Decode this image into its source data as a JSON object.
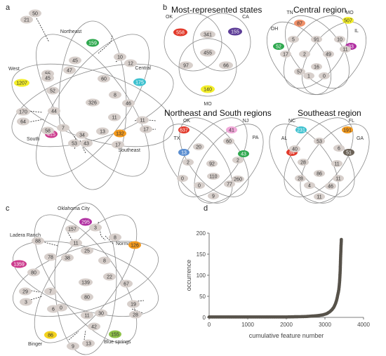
{
  "panels": [
    {
      "id": "a",
      "letter": "a",
      "venn_sets": 5,
      "set_labels": [
        "Northeast",
        "Central",
        "Southeast",
        "South",
        "West"
      ],
      "unique": [
        {
          "set": "Northeast",
          "value": "159",
          "color": "#2fa84f"
        },
        {
          "set": "Central",
          "value": "175",
          "color": "#3ec1cf"
        },
        {
          "set": "Southeast",
          "value": "132",
          "color": "#f39a1e"
        },
        {
          "set": "South",
          "value": "415",
          "color": "#cc3b8d"
        },
        {
          "set": "West",
          "value": "1207",
          "color": "#f3ee2a"
        }
      ],
      "intersections": [
        "50",
        "21",
        "45",
        "47",
        "55",
        "10",
        "12",
        "60",
        "45",
        "52",
        "8",
        "46",
        "326",
        "170",
        "44",
        "11",
        "11",
        "64",
        "7",
        "17",
        "58",
        "34",
        "13",
        "17",
        "53",
        "43"
      ]
    },
    {
      "id": "b1",
      "letter": "b",
      "title": "Most-represented states",
      "venn_sets": 3,
      "set_labels": [
        "OK",
        "CA",
        "MO"
      ],
      "unique": [
        {
          "set": "OK",
          "value": "558",
          "color": "#e23a2b"
        },
        {
          "set": "CA",
          "value": "155",
          "color": "#5d3d97"
        },
        {
          "set": "MO",
          "value": "140",
          "color": "#f3ee2a"
        }
      ],
      "intersections": [
        "341",
        "455",
        "97",
        "66"
      ]
    },
    {
      "id": "b2",
      "title": "Central region",
      "venn_sets": 4,
      "set_labels": [
        "OH",
        "TN",
        "MO",
        "IL"
      ],
      "unique": [
        {
          "set": "OH",
          "value": "52",
          "color": "#2fa84f"
        },
        {
          "set": "TN",
          "value": "87",
          "color": "#f0916a"
        },
        {
          "set": "MO",
          "value": "507",
          "color": "#f3ee2a"
        },
        {
          "set": "IL",
          "value": "33",
          "color": "#b02fa1"
        }
      ],
      "intersections": [
        "5",
        "91",
        "10",
        "17",
        "11",
        "2",
        "49",
        "57",
        "16",
        "1",
        "0"
      ]
    },
    {
      "id": "b3",
      "title": "Northeast and South regions",
      "venn_sets": 4,
      "set_labels": [
        "TX",
        "OK",
        "NJ",
        "PA"
      ],
      "unique": [
        {
          "set": "TX",
          "value": "13",
          "color": "#5b8ed0"
        },
        {
          "set": "OK",
          "value": "637",
          "color": "#e23a2b"
        },
        {
          "set": "NJ",
          "value": "41",
          "color": "#f0a8d8"
        },
        {
          "set": "PA",
          "value": "43",
          "color": "#2fa84f"
        }
      ],
      "intersections": [
        "20",
        "60",
        "2",
        "92",
        "2",
        "110",
        "0",
        "77",
        "260",
        "0",
        "9"
      ]
    },
    {
      "id": "b4",
      "title": "Southeast region",
      "venn_sets": 4,
      "set_labels": [
        "AL",
        "NC",
        "FL",
        "GA"
      ],
      "unique": [
        {
          "set": "AL",
          "value": "84",
          "color": "#e23a2b"
        },
        {
          "set": "NC",
          "value": "231",
          "color": "#3ec1cf"
        },
        {
          "set": "FL",
          "value": "191",
          "color": "#f39a1e"
        },
        {
          "set": "GA",
          "value": "51",
          "color": "#6b6257"
        }
      ],
      "intersections": [
        "40",
        "53",
        "6",
        "28",
        "11",
        "86",
        "28",
        "4",
        "46",
        "11",
        "11"
      ]
    },
    {
      "id": "c",
      "letter": "c",
      "venn_sets": 5,
      "set_labels": [
        "Oklahoma City",
        "Norman",
        "Blue springs",
        "Binger",
        "Ladera Ranch"
      ],
      "unique": [
        {
          "set": "Oklahoma City",
          "value": "295",
          "color": "#b02fa1"
        },
        {
          "set": "Norman",
          "value": "126",
          "color": "#f39a1e"
        },
        {
          "set": "Blue springs",
          "value": "155",
          "color": "#8fc24a"
        },
        {
          "set": "Binger",
          "value": "86",
          "color": "#f3d21e"
        },
        {
          "set": "Ladera Ranch",
          "value": "1359",
          "color": "#cc3b8d"
        }
      ],
      "intersections": [
        "157",
        "3",
        "11",
        "88",
        "25",
        "8",
        "78",
        "38",
        "8",
        "22",
        "80",
        "139",
        "67",
        "29",
        "7",
        "80",
        "19",
        "3",
        "6",
        "0",
        "30",
        "28",
        "11",
        "42",
        "9",
        "13"
      ]
    }
  ],
  "chart_data": {
    "letter": "d",
    "type": "scatter",
    "xlabel": "cumulative feature  number",
    "ylabel": "occurrence",
    "xlim": [
      0,
      4000
    ],
    "ylim": [
      0,
      200
    ],
    "xticks": [
      0,
      1000,
      2000,
      3000,
      4000
    ],
    "yticks": [
      0,
      50,
      100,
      150,
      200
    ],
    "marker_color": "#57524a",
    "points": [
      [
        0,
        1
      ],
      [
        1000,
        1
      ],
      [
        2000,
        1
      ],
      [
        2500,
        2
      ],
      [
        2800,
        4
      ],
      [
        2950,
        6
      ],
      [
        3050,
        9
      ],
      [
        3120,
        13
      ],
      [
        3180,
        18
      ],
      [
        3230,
        24
      ],
      [
        3270,
        32
      ],
      [
        3300,
        40
      ],
      [
        3330,
        52
      ],
      [
        3360,
        66
      ],
      [
        3380,
        85
      ],
      [
        3395,
        110
      ],
      [
        3405,
        140
      ],
      [
        3415,
        165
      ],
      [
        3425,
        185
      ]
    ]
  }
}
